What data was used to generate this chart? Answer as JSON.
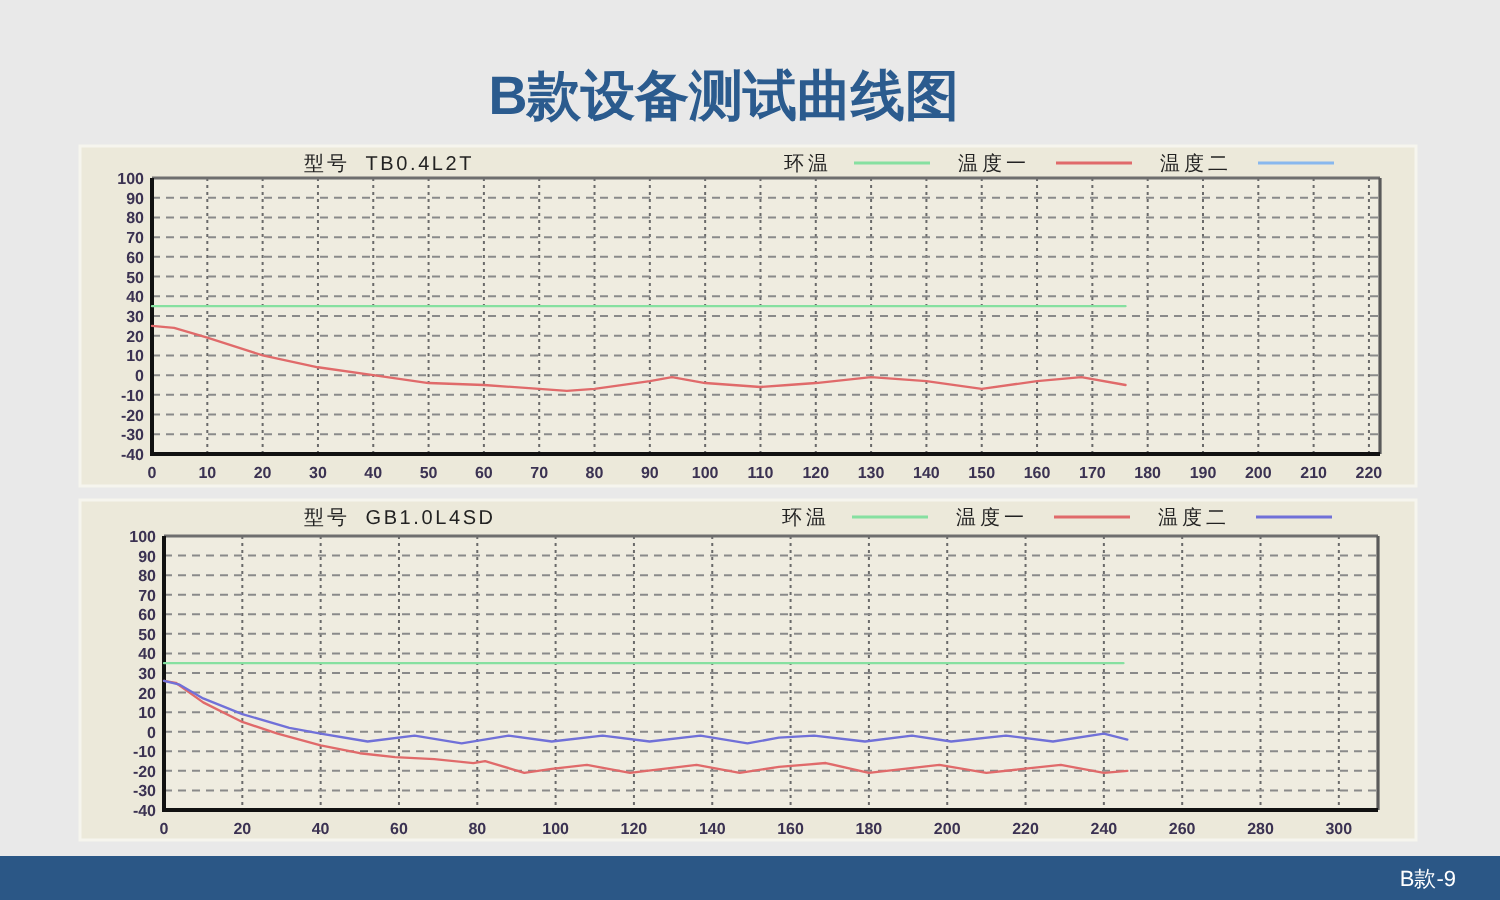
{
  "chart_data": [
    {
      "type": "line",
      "title": "B款设备测试曲线图",
      "subtitle": "型号  TB0.4L2T",
      "xlim": [
        0,
        222
      ],
      "xticks": [
        0,
        10,
        20,
        30,
        40,
        50,
        60,
        70,
        80,
        90,
        100,
        110,
        120,
        130,
        140,
        150,
        160,
        170,
        180,
        190,
        200,
        210,
        220
      ],
      "ylim": [
        -40,
        100
      ],
      "yticks": [
        -40,
        -30,
        -20,
        -10,
        0,
        10,
        20,
        30,
        40,
        50,
        60,
        70,
        80,
        90,
        100
      ],
      "grid": true,
      "legend": "top right",
      "series": [
        {
          "name": "环温",
          "color": "#86e0a0",
          "x": [
            0,
            176
          ],
          "values": [
            35,
            35
          ]
        },
        {
          "name": "温度一",
          "color": "#e06a6a",
          "x": [
            0,
            4,
            10,
            20,
            30,
            40,
            50,
            60,
            70,
            75,
            80,
            90,
            94,
            100,
            110,
            115,
            120,
            130,
            140,
            150,
            160,
            168,
            176
          ],
          "values": [
            25,
            24,
            19,
            10,
            4,
            0,
            -4,
            -5,
            -7,
            -8,
            -7,
            -3,
            -1,
            -4,
            -6,
            -5,
            -4,
            -1,
            -3,
            -7,
            -3,
            -1,
            -5
          ]
        },
        {
          "name": "温度二",
          "color": "#88b8ee"
        }
      ]
    },
    {
      "type": "line",
      "subtitle": "型号  GB1.0L4SD",
      "xlim": [
        0,
        310
      ],
      "xticks": [
        0,
        20,
        40,
        60,
        80,
        100,
        120,
        140,
        160,
        180,
        200,
        220,
        240,
        260,
        280,
        300
      ],
      "ylim": [
        -40,
        100
      ],
      "yticks": [
        -40,
        -30,
        -20,
        -10,
        0,
        10,
        20,
        30,
        40,
        50,
        60,
        70,
        80,
        90,
        100
      ],
      "grid": true,
      "legend": "top right",
      "annotations": [
        "B款-9"
      ],
      "series": [
        {
          "name": "环温",
          "color": "#86e0a0",
          "x": [
            0,
            245
          ],
          "values": [
            35,
            35
          ]
        },
        {
          "name": "温度一",
          "color": "#e06a6a",
          "x": [
            0,
            3,
            10,
            20,
            29,
            40,
            50,
            59,
            69,
            79,
            82,
            92,
            99,
            108,
            119,
            136,
            147,
            157,
            169,
            180,
            198,
            210,
            229,
            240,
            246
          ],
          "values": [
            26,
            25,
            15,
            5,
            -1,
            -7,
            -11,
            -13,
            -14,
            -16,
            -15,
            -21,
            -19,
            -17,
            -21,
            -17,
            -21,
            -18,
            -16,
            -21,
            -17,
            -21,
            -17,
            -21,
            -20
          ]
        },
        {
          "name": "温度二",
          "color": "#7070d8",
          "x": [
            0,
            4,
            10,
            20,
            32,
            40,
            52,
            64,
            76,
            88,
            99,
            112,
            124,
            137,
            149,
            157,
            166,
            179,
            191,
            201,
            215,
            227,
            240,
            246
          ],
          "values": [
            26,
            24,
            17,
            9,
            2,
            -1,
            -5,
            -2,
            -6,
            -2,
            -5,
            -2,
            -5,
            -2,
            -6,
            -3,
            -2,
            -5,
            -2,
            -5,
            -2,
            -5,
            -1,
            -4
          ]
        }
      ]
    }
  ]
}
